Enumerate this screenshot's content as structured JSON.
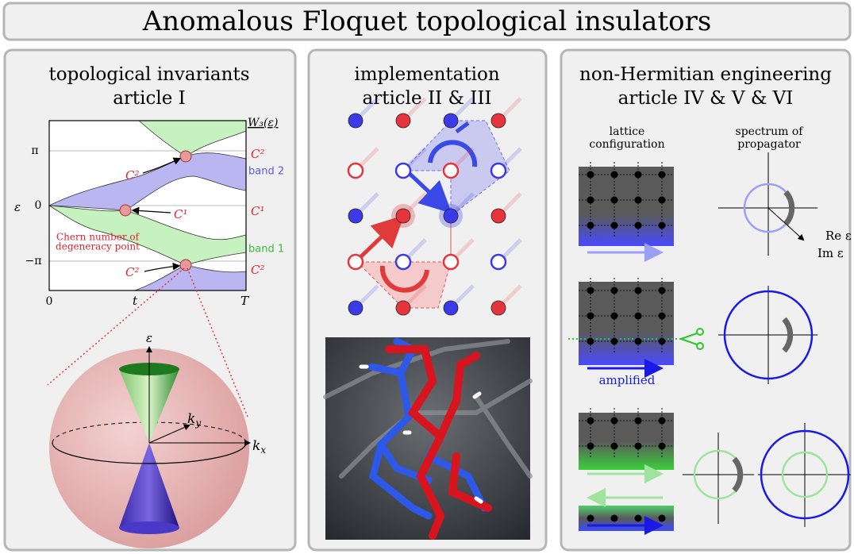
{
  "header": {
    "title": "Anomalous Floquet topological insulators"
  },
  "panels": [
    {
      "heading": [
        "topological invariants",
        "article I"
      ],
      "plot": {
        "winding_label": "W₃(ε)",
        "y_axis_label": "ε",
        "y_ticks": [
          "π",
          "0",
          "−π"
        ],
        "x_ticks": [
          "0",
          "t",
          "T"
        ],
        "point_labels": [
          "C²",
          "C¹",
          "C²"
        ],
        "right_labels": [
          "C²",
          "band 2",
          "C¹",
          "band 1",
          "C²"
        ],
        "annotation": [
          "Chern number of",
          "degeneracy point"
        ]
      },
      "sphere": {
        "energy_label": "ε",
        "ky": {
          "base": "k",
          "sub": "y"
        },
        "kx": {
          "base": "k",
          "sub": "x"
        }
      }
    },
    {
      "heading": [
        "implementation",
        "article II & III"
      ]
    },
    {
      "heading": [
        "non-Hermitian engineering",
        "article IV & V & VI"
      ],
      "columns": [
        [
          "lattice",
          "configuration"
        ],
        [
          "spectrum of",
          "propagator"
        ]
      ],
      "axis_labels": [
        "Re ε",
        "Im ε"
      ],
      "amplified": "amplified"
    }
  ]
}
